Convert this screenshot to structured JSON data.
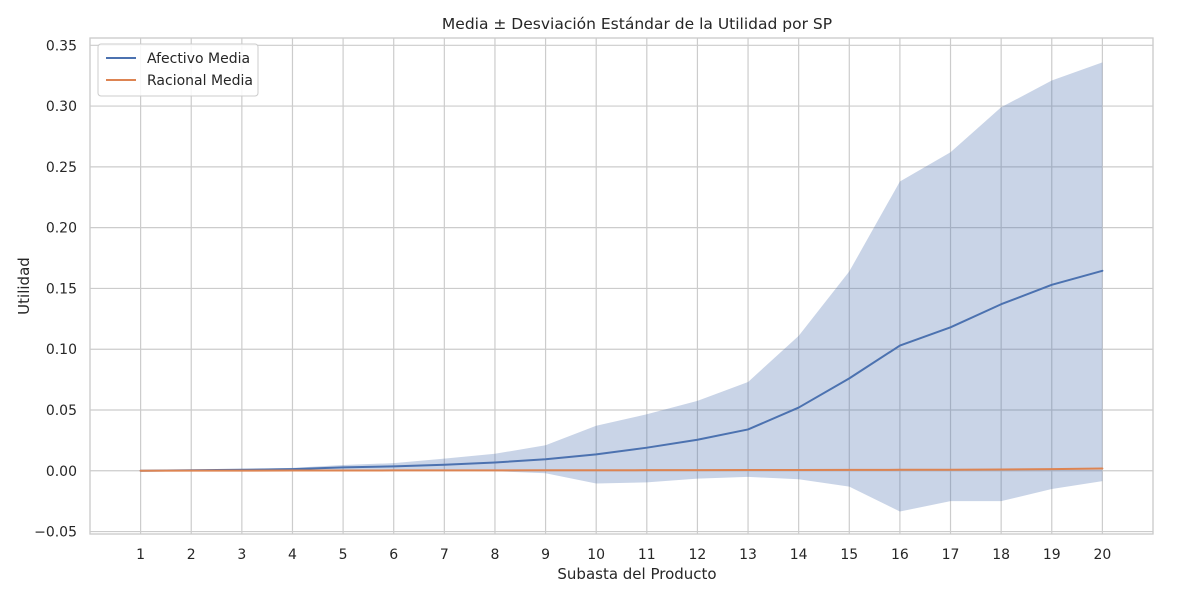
{
  "chart_data": {
    "type": "line",
    "title": "Media ± Desviación Estándar de la Utilidad por SP",
    "xlabel": "Subasta del Producto",
    "ylabel": "Utilidad",
    "x": [
      1,
      2,
      3,
      4,
      5,
      6,
      7,
      8,
      9,
      10,
      11,
      12,
      13,
      14,
      15,
      16,
      17,
      18,
      19,
      20
    ],
    "xticks": [
      "1",
      "2",
      "3",
      "4",
      "5",
      "6",
      "7",
      "8",
      "9",
      "10",
      "11",
      "12",
      "13",
      "14",
      "15",
      "16",
      "17",
      "18",
      "19",
      "20"
    ],
    "yticks": [
      -0.05,
      0.0,
      0.05,
      0.1,
      0.15,
      0.2,
      0.25,
      0.3,
      0.35
    ],
    "ytick_labels": [
      "−0.05",
      "0.00",
      "0.05",
      "0.10",
      "0.15",
      "0.20",
      "0.25",
      "0.30",
      "0.35"
    ],
    "xlim": [
      0.0,
      21.0
    ],
    "ylim": [
      -0.052,
      0.356
    ],
    "grid": true,
    "legend_position": "top-left",
    "series": [
      {
        "name": "Afectivo Media",
        "color": "#4c72b0",
        "values": [
          0.0,
          0.0004,
          0.0008,
          0.0014,
          0.0028,
          0.0036,
          0.005,
          0.0068,
          0.0095,
          0.0135,
          0.019,
          0.0255,
          0.034,
          0.052,
          0.076,
          0.103,
          0.118,
          0.137,
          0.153,
          0.1645
        ],
        "band_upper": [
          0.0,
          0.0006,
          0.0013,
          0.0024,
          0.0048,
          0.0063,
          0.01,
          0.014,
          0.021,
          0.037,
          0.0465,
          0.0575,
          0.073,
          0.111,
          0.164,
          0.238,
          0.262,
          0.299,
          0.321,
          0.336
        ],
        "band_lower": [
          0.0,
          0.0002,
          0.0003,
          0.0004,
          0.0008,
          0.0009,
          0.0,
          -0.0004,
          -0.002,
          -0.0105,
          -0.0095,
          -0.0065,
          -0.005,
          -0.007,
          -0.013,
          -0.0335,
          -0.025,
          -0.025,
          -0.015,
          -0.0085
        ],
        "band_color": "#4c72b0",
        "band_opacity": 0.3
      },
      {
        "name": "Racional Media",
        "color": "#dd8452",
        "values": [
          0.0,
          0.0001,
          0.0001,
          0.0002,
          0.0002,
          0.0003,
          0.0003,
          0.0003,
          0.0004,
          0.0004,
          0.0005,
          0.0005,
          0.0006,
          0.0006,
          0.0007,
          0.0008,
          0.0009,
          0.0011,
          0.0014,
          0.0019
        ]
      }
    ]
  }
}
